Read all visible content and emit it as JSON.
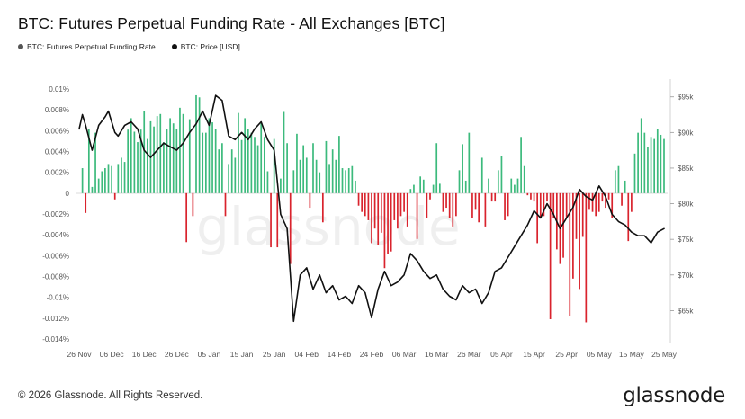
{
  "title": "BTC: Futures Perpetual Funding Rate - All Exchanges [BTC]",
  "legend": {
    "funding_label": "BTC: Futures Perpetual Funding Rate",
    "price_label": "BTC: Price [USD]",
    "funding_color": "#555555",
    "price_color": "#111111"
  },
  "footer": {
    "copyright": "© 2026 Glassnode. All Rights Reserved.",
    "logo": "glassnode"
  },
  "watermark": "glassnode",
  "colors": {
    "positive": "#3cba7c",
    "negative": "#d9232d",
    "price_line": "#111111"
  },
  "chart_data": {
    "type": "bar",
    "left_axis": {
      "ticks": [
        0.01,
        0.008,
        0.006,
        0.004,
        0.002,
        0,
        -0.002,
        -0.004,
        -0.006,
        -0.008,
        -0.01,
        -0.012,
        -0.014
      ],
      "tick_labels": [
        "0.01%",
        "0.008%",
        "0.006%",
        "0.004%",
        "0.002%",
        "0",
        "-0.002%",
        "-0.004%",
        "-0.006%",
        "-0.008%",
        "-0.01%",
        "-0.012%",
        "-0.014%"
      ],
      "range": [
        -0.014,
        0.01
      ]
    },
    "right_axis": {
      "ticks": [
        95000,
        90000,
        85000,
        80000,
        75000,
        70000,
        65000
      ],
      "tick_labels": [
        "$95k",
        "$90k",
        "$85k",
        "$80k",
        "$75k",
        "$70k",
        "$65k"
      ],
      "range": [
        60000,
        98500
      ]
    },
    "x_axis": {
      "range_days": [
        0,
        180
      ],
      "tick_days": [
        0,
        10,
        20,
        30,
        40,
        50,
        60,
        70,
        80,
        90,
        100,
        110,
        120,
        130,
        140,
        150,
        160,
        170,
        180
      ],
      "tick_labels": [
        "26 Nov",
        "06 Dec",
        "16 Dec",
        "26 Dec",
        "05 Jan",
        "15 Jan",
        "25 Jan",
        "04 Feb",
        "14 Feb",
        "24 Feb",
        "06 Mar",
        "16 Mar",
        "26 Mar",
        "05 Apr",
        "15 Apr",
        "25 Apr",
        "05 May",
        "15 May",
        "25 May"
      ]
    },
    "series": [
      {
        "name": "BTC: Futures Perpetual Funding Rate",
        "kind": "bar",
        "x": [
          1,
          2,
          3,
          4,
          5,
          6,
          7,
          8,
          9,
          10,
          11,
          12,
          13,
          14,
          15,
          16,
          17,
          18,
          19,
          20,
          21,
          22,
          23,
          24,
          25,
          26,
          27,
          28,
          29,
          30,
          31,
          32,
          33,
          34,
          35,
          36,
          37,
          38,
          39,
          40,
          41,
          42,
          43,
          44,
          45,
          46,
          47,
          48,
          49,
          50,
          51,
          52,
          53,
          54,
          55,
          56,
          57,
          58,
          59,
          60,
          61,
          62,
          63,
          64,
          65,
          66,
          67,
          68,
          69,
          70,
          71,
          72,
          73,
          74,
          75,
          76,
          77,
          78,
          79,
          80,
          81,
          82,
          83,
          84,
          85,
          86,
          87,
          88,
          89,
          90,
          91,
          92,
          93,
          94,
          95,
          96,
          97,
          98,
          99,
          100,
          101,
          102,
          103,
          104,
          105,
          106,
          107,
          108,
          109,
          110,
          111,
          112,
          113,
          114,
          115,
          116,
          117,
          118,
          119,
          120,
          121,
          122,
          123,
          124,
          125,
          126,
          127,
          128,
          129,
          130,
          131,
          132,
          133,
          134,
          135,
          136,
          137,
          138,
          139,
          140,
          141,
          142,
          143,
          144,
          145,
          146,
          147,
          148,
          149,
          150,
          151,
          152,
          153,
          154,
          155,
          156,
          157,
          158,
          159,
          160,
          161,
          162,
          163,
          164,
          165,
          166,
          167,
          168,
          169,
          170,
          171,
          172,
          173,
          174,
          175,
          176,
          177,
          178,
          179,
          180
        ],
        "y": [
          0.0024,
          -0.0019,
          0.0062,
          0.0006,
          0.0058,
          0.0014,
          0.0021,
          0.0024,
          0.0028,
          0.0026,
          -0.0006,
          0.0028,
          0.0034,
          0.003,
          0.0061,
          0.0072,
          0.0059,
          0.0049,
          0.0061,
          0.0079,
          0.0052,
          0.0069,
          0.0064,
          0.0074,
          0.0076,
          0.0049,
          0.0062,
          0.0072,
          0.0067,
          0.0062,
          0.0082,
          0.0076,
          -0.0047,
          0.0071,
          -0.0022,
          0.0094,
          0.0092,
          0.0058,
          0.0058,
          0.0072,
          0.0068,
          0.0062,
          0.0042,
          0.0048,
          -0.0022,
          0.0028,
          0.0042,
          0.0034,
          0.0077,
          0.0051,
          0.0072,
          0.0062,
          0.0058,
          0.0054,
          0.0046,
          0.0068,
          0.0054,
          0.0021,
          -0.0052,
          0.0052,
          -0.0052,
          0.0014,
          0.0078,
          0.0048,
          -0.0068,
          0.0022,
          0.0057,
          0.0032,
          0.0046,
          0.0034,
          -0.0014,
          0.0048,
          0.0032,
          0.002,
          -0.0028,
          0.005,
          0.0028,
          0.0042,
          0.0032,
          0.0055,
          0.0024,
          0.0022,
          0.0024,
          0.0026,
          0.0012,
          -0.0012,
          -0.0018,
          -0.0022,
          -0.0026,
          -0.0048,
          -0.0034,
          -0.005,
          -0.0038,
          -0.0072,
          -0.0058,
          -0.0056,
          -0.0026,
          -0.0034,
          -0.0022,
          -0.0018,
          -0.0032,
          0.0004,
          0.0008,
          -0.0044,
          0.0016,
          0.0013,
          -0.0024,
          -0.0006,
          0.0008,
          0.0048,
          0.0009,
          -0.0018,
          -0.0014,
          -0.0024,
          -0.0032,
          -0.0022,
          0.0022,
          0.0047,
          0.0012,
          0.0058,
          -0.0024,
          -0.0016,
          -0.0028,
          0.0034,
          -0.0032,
          0.0014,
          -0.0008,
          -0.0008,
          0.0022,
          0.0036,
          -0.0026,
          -0.0022,
          0.0014,
          0.0008,
          0.0014,
          0.0054,
          0.0026,
          -0.0002,
          -0.0006,
          -0.0008,
          -0.0048,
          -0.0024,
          -0.0022,
          -0.0008,
          -0.0121,
          -0.0024,
          -0.0054,
          -0.0068,
          -0.0062,
          -0.0024,
          -0.0118,
          -0.0082,
          -0.0044,
          -0.0092,
          -0.0042,
          -0.0124,
          -0.0016,
          -0.0018,
          -0.0022,
          -0.0018,
          -0.0008,
          -0.0014,
          -0.0006,
          -0.0024,
          0.0022,
          0.0026,
          -0.0012,
          0.0012,
          -0.0046,
          -0.0018,
          0.0038,
          0.0058,
          0.0072,
          0.0058,
          0.0044,
          0.0054,
          0.0052,
          0.0062,
          0.0056,
          0.0052
        ]
      },
      {
        "name": "BTC: Price [USD]",
        "kind": "line",
        "x": [
          0,
          1,
          2,
          4,
          6,
          8,
          9,
          10,
          11,
          12,
          14,
          16,
          18,
          20,
          22,
          24,
          26,
          28,
          30,
          32,
          34,
          36,
          38,
          40,
          42,
          44,
          46,
          48,
          50,
          52,
          54,
          56,
          58,
          60,
          62,
          64,
          66,
          68,
          70,
          72,
          74,
          76,
          78,
          80,
          82,
          84,
          86,
          88,
          90,
          92,
          94,
          96,
          98,
          100,
          102,
          104,
          106,
          108,
          110,
          112,
          114,
          116,
          118,
          120,
          122,
          124,
          126,
          128,
          130,
          132,
          134,
          136,
          138,
          140,
          142,
          144,
          146,
          148,
          150,
          152,
          154,
          156,
          158,
          160,
          162,
          164,
          166,
          168,
          170,
          172,
          174,
          176,
          178,
          180
        ],
        "y": [
          90500,
          92500,
          91000,
          87500,
          91000,
          92200,
          93000,
          91500,
          90000,
          89500,
          91000,
          91500,
          90500,
          87500,
          86500,
          87500,
          88500,
          88000,
          87500,
          88500,
          90000,
          91200,
          93000,
          91000,
          95200,
          94500,
          89500,
          89000,
          90000,
          89000,
          90500,
          91500,
          89000,
          87500,
          78500,
          76500,
          63500,
          70000,
          71000,
          68000,
          70000,
          67500,
          68500,
          66500,
          67000,
          66000,
          68500,
          67500,
          64000,
          68000,
          70500,
          68500,
          69000,
          70000,
          73000,
          72000,
          70500,
          69500,
          70000,
          68000,
          67000,
          66500,
          68500,
          67500,
          68000,
          66000,
          67500,
          70500,
          71000,
          72500,
          74000,
          75500,
          77000,
          79000,
          78000,
          80000,
          78500,
          76500,
          78000,
          79500,
          82000,
          81000,
          80500,
          82500,
          81000,
          78500,
          77500,
          77000,
          76000,
          75500,
          75500,
          74500,
          76000,
          76500
        ]
      }
    ]
  }
}
